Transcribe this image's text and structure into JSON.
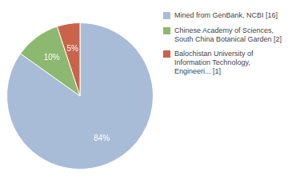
{
  "chart_data": {
    "type": "pie",
    "categories": [
      "Mined from GenBank, NCBI [16]",
      "Chinese Academy of Sciences,\nSouth China Botanical Garden [2]",
      "Balochistan University of\nInformation Technology,\nEngineeri... [1]"
    ],
    "values": [
      84,
      10,
      5
    ],
    "value_labels": [
      "84%",
      "10%",
      "5%"
    ],
    "colors": [
      "#a8bcd8",
      "#8db870",
      "#c9644a"
    ],
    "data_labels": true,
    "legend": "right"
  }
}
